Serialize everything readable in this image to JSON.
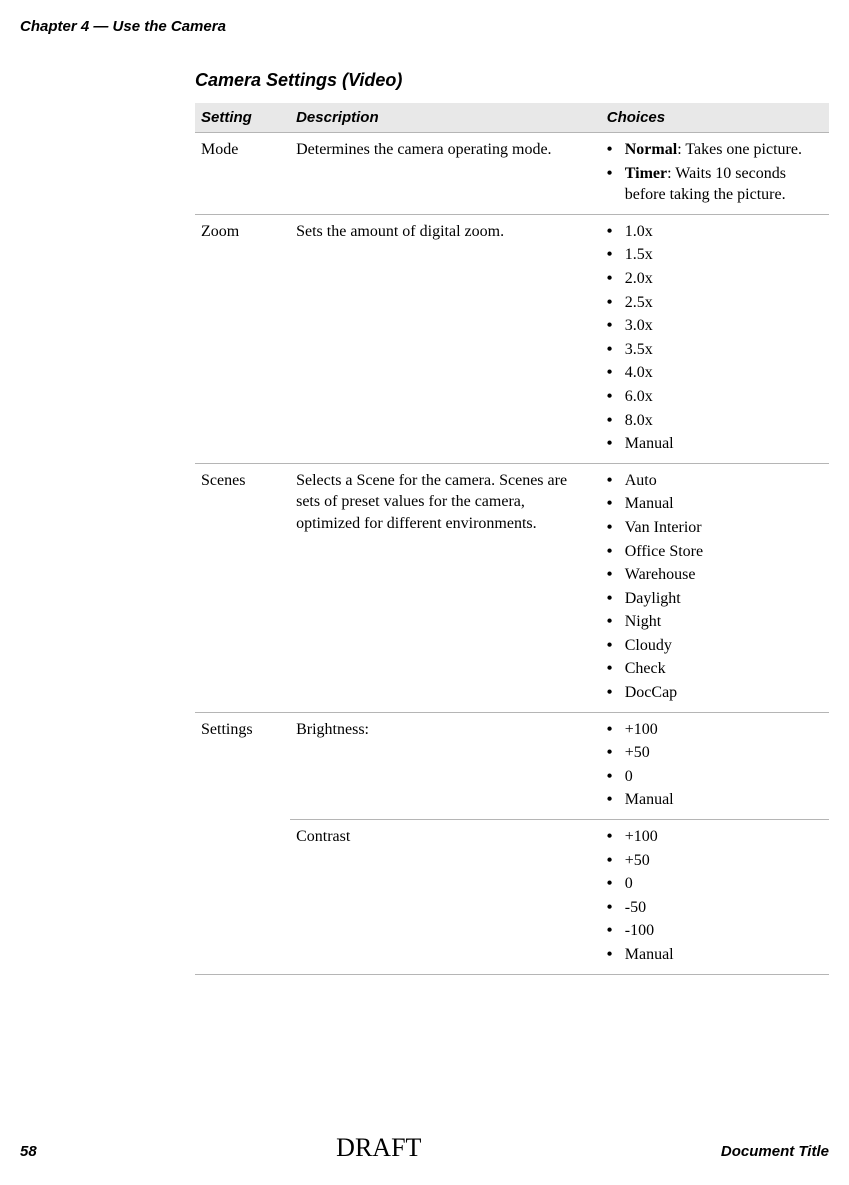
{
  "header": "Chapter 4 — Use the Camera",
  "section_title": "Camera Settings (Video)",
  "columns": {
    "c0": "Setting",
    "c1": "Description",
    "c2": "Choices"
  },
  "rows": {
    "mode": {
      "setting": "Mode",
      "desc": "Determines the camera operating mode.",
      "choices": {
        "i0": {
          "bold": "Normal",
          "rest": ": Takes one picture."
        },
        "i1": {
          "bold": "Timer",
          "rest": ": Waits 10 seconds before taking the picture."
        }
      }
    },
    "zoom": {
      "setting": "Zoom",
      "desc": "Sets the amount of digital zoom.",
      "choices": {
        "i0": "1.0x",
        "i1": "1.5x",
        "i2": "2.0x",
        "i3": "2.5x",
        "i4": "3.0x",
        "i5": "3.5x",
        "i6": "4.0x",
        "i7": "6.0x",
        "i8": "8.0x",
        "i9": "Manual"
      }
    },
    "scenes": {
      "setting": "Scenes",
      "desc": "Selects a Scene for the camera. Scenes are sets of preset values for the camera, optimized for different environments.",
      "choices": {
        "i0": "Auto",
        "i1": "Manual",
        "i2": "Van Interior",
        "i3": "Office Store",
        "i4": "Warehouse",
        "i5": "Daylight",
        "i6": "Night",
        "i7": "Cloudy",
        "i8": "Check",
        "i9": "DocCap"
      }
    },
    "settings_brightness": {
      "setting": "Settings",
      "desc": "Brightness:",
      "choices": {
        "i0": "+100",
        "i1": "+50",
        "i2": "0",
        "i3": "Manual"
      }
    },
    "settings_contrast": {
      "setting": "",
      "desc": "Contrast",
      "choices": {
        "i0": "+100",
        "i1": "+50",
        "i2": "0",
        "i3": "-50",
        "i4": "-100",
        "i5": "Manual"
      }
    }
  },
  "footer": {
    "page": "58",
    "draft": "DRAFT",
    "doc": "Document Title"
  },
  "bullet": "•"
}
